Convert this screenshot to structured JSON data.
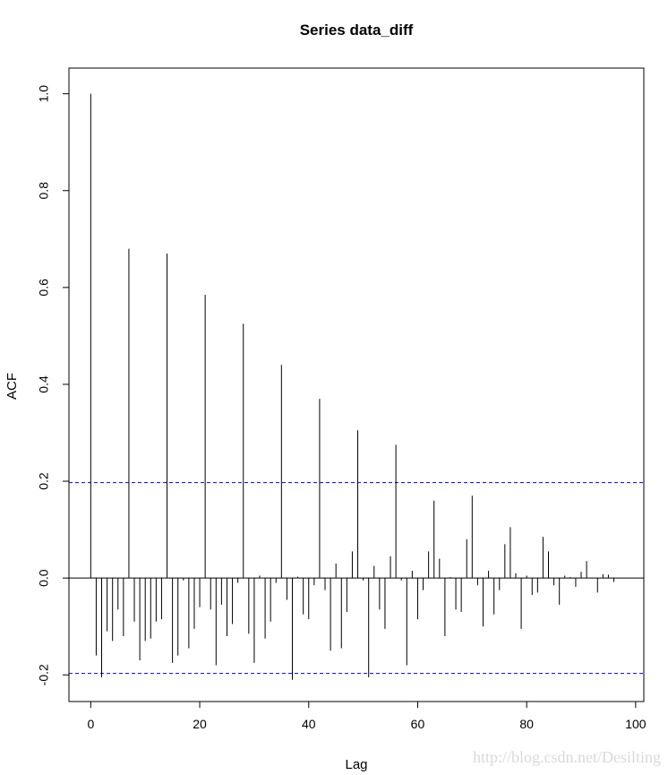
{
  "chart_data": {
    "type": "bar",
    "title": "Series  data_diff",
    "xlabel": "Lag",
    "ylabel": "ACF",
    "xlim": [
      -4,
      101.5
    ],
    "ylim": [
      -0.255,
      1.053
    ],
    "x_ticks": [
      0,
      20,
      40,
      60,
      80,
      100
    ],
    "y_ticks": [
      -0.2,
      0.0,
      0.2,
      0.4,
      0.6,
      0.8,
      1.0
    ],
    "y_tick_labels": [
      "-0.2",
      "0.0",
      "0.2",
      "0.4",
      "0.6",
      "0.8",
      "1.0"
    ],
    "confidence_bounds": [
      0.197,
      -0.197
    ],
    "confidence_color": "#0000cc",
    "lags": [
      0,
      1,
      2,
      3,
      4,
      5,
      6,
      7,
      8,
      9,
      10,
      11,
      12,
      13,
      14,
      15,
      16,
      17,
      18,
      19,
      20,
      21,
      22,
      23,
      24,
      25,
      26,
      27,
      28,
      29,
      30,
      31,
      32,
      33,
      34,
      35,
      36,
      37,
      38,
      39,
      40,
      41,
      42,
      43,
      44,
      45,
      46,
      47,
      48,
      49,
      50,
      51,
      52,
      53,
      54,
      55,
      56,
      57,
      58,
      59,
      60,
      61,
      62,
      63,
      64,
      65,
      66,
      67,
      68,
      69,
      70,
      71,
      72,
      73,
      74,
      75,
      76,
      77,
      78,
      79,
      80,
      81,
      82,
      83,
      84,
      85,
      86,
      87,
      88,
      89,
      90,
      91,
      92,
      93,
      94,
      95,
      96
    ],
    "acf": [
      1.0,
      -0.16,
      -0.205,
      -0.11,
      -0.13,
      -0.065,
      -0.12,
      0.68,
      -0.09,
      -0.17,
      -0.13,
      -0.125,
      -0.09,
      -0.085,
      0.67,
      -0.175,
      -0.16,
      -0.005,
      -0.145,
      -0.105,
      -0.06,
      0.585,
      -0.065,
      -0.18,
      -0.055,
      -0.12,
      -0.095,
      -0.01,
      0.525,
      -0.115,
      -0.175,
      0.005,
      -0.125,
      -0.09,
      -0.01,
      0.44,
      -0.045,
      -0.21,
      0.003,
      -0.075,
      -0.085,
      -0.015,
      0.37,
      -0.025,
      -0.15,
      0.03,
      -0.145,
      -0.07,
      0.055,
      0.305,
      -0.005,
      -0.205,
      0.025,
      -0.065,
      -0.105,
      0.045,
      0.275,
      -0.005,
      -0.18,
      0.015,
      -0.085,
      -0.025,
      0.055,
      0.16,
      0.04,
      -0.12,
      0.002,
      -0.065,
      -0.07,
      0.08,
      0.17,
      -0.015,
      -0.1,
      0.015,
      -0.075,
      -0.025,
      0.07,
      0.105,
      0.01,
      -0.105,
      0.005,
      -0.035,
      -0.03,
      0.085,
      0.055,
      -0.015,
      -0.055,
      0.005,
      0.002,
      -0.018,
      0.013,
      0.035,
      0.001,
      -0.03,
      0.008,
      0.007,
      -0.008
    ]
  },
  "watermark": "http://blog.csdn.net/Desilting"
}
